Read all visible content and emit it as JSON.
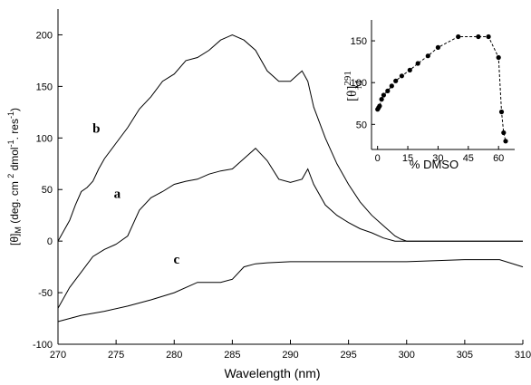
{
  "chart_data": [
    {
      "type": "line",
      "title": "",
      "xlabel": "Wavelength (nm)",
      "ylabel": "[θ]M (deg. cm 2 dmol-1. res-1)",
      "ylabel_parts": {
        "theta": "[θ]",
        "sub": "M",
        "units_a": " (deg. cm ",
        "units_sq": "2",
        "units_b": " dmol",
        "units_exp": "-1",
        "units_c": ". res",
        "units_exp2": "-1",
        "units_end": ")"
      },
      "xlim": [
        270,
        310
      ],
      "ylim": [
        -100,
        225
      ],
      "xticks": [
        270,
        275,
        280,
        285,
        290,
        295,
        300,
        305,
        310
      ],
      "yticks": [
        -100,
        -50,
        0,
        50,
        100,
        150,
        200
      ],
      "grid": false,
      "series": [
        {
          "name": "b",
          "x": [
            270,
            271,
            271.5,
            272,
            272.5,
            273,
            273.5,
            274,
            275,
            276,
            277,
            278,
            279,
            280,
            281,
            282,
            283,
            284,
            285,
            286,
            287,
            288,
            289,
            290,
            290.5,
            291,
            291.5,
            292,
            293,
            294,
            295,
            296,
            297,
            298,
            299,
            299.5,
            300,
            301,
            305,
            310
          ],
          "y": [
            0,
            20,
            35,
            48,
            52,
            58,
            70,
            80,
            95,
            110,
            128,
            140,
            155,
            162,
            175,
            178,
            185,
            195,
            200,
            195,
            185,
            165,
            155,
            155,
            160,
            165,
            155,
            130,
            100,
            75,
            55,
            38,
            25,
            15,
            5,
            2,
            0,
            0,
            0,
            0
          ]
        },
        {
          "name": "a",
          "x": [
            270,
            271,
            272,
            273,
            274,
            275,
            276,
            277,
            278,
            279,
            280,
            281,
            282,
            283,
            284,
            285,
            286,
            287,
            288,
            289,
            290,
            291,
            291.5,
            292,
            293,
            294,
            295,
            296,
            297,
            298,
            299,
            300,
            305,
            310
          ],
          "y": [
            -65,
            -45,
            -30,
            -15,
            -8,
            -3,
            5,
            30,
            42,
            48,
            55,
            58,
            60,
            65,
            68,
            70,
            80,
            90,
            78,
            60,
            57,
            60,
            70,
            55,
            35,
            25,
            18,
            12,
            8,
            3,
            0,
            0,
            0,
            0
          ]
        },
        {
          "name": "c",
          "x": [
            270,
            272,
            274,
            276,
            278,
            280,
            282,
            283,
            284,
            285,
            286,
            287,
            288,
            290,
            295,
            300,
            305,
            308,
            310
          ],
          "y": [
            -78,
            -72,
            -68,
            -63,
            -57,
            -50,
            -40,
            -40,
            -40,
            -37,
            -25,
            -22,
            -21,
            -20,
            -20,
            -20,
            -18,
            -18,
            -25
          ]
        }
      ]
    },
    {
      "type": "scatter",
      "title": "",
      "xlabel": "% DMSO",
      "ylabel": "[θ]291 M",
      "ylabel_parts": {
        "theta": "[θ]",
        "sup": "291",
        "sub": "M"
      },
      "xlim": [
        -3,
        68
      ],
      "ylim": [
        20,
        175
      ],
      "xticks": [
        0,
        15,
        30,
        45,
        60
      ],
      "yticks": [
        50,
        100,
        150
      ],
      "grid": false,
      "series": [
        {
          "name": "",
          "x": [
            0,
            0.5,
            1,
            2,
            3,
            5,
            7,
            9,
            12,
            16,
            20,
            25,
            30,
            40,
            50,
            55,
            60,
            61.5,
            62.5,
            63.5
          ],
          "y": [
            68,
            70,
            72,
            80,
            85,
            90,
            96,
            102,
            108,
            115,
            123,
            132,
            142,
            155,
            155,
            155,
            130,
            65,
            40,
            30
          ]
        }
      ]
    }
  ]
}
